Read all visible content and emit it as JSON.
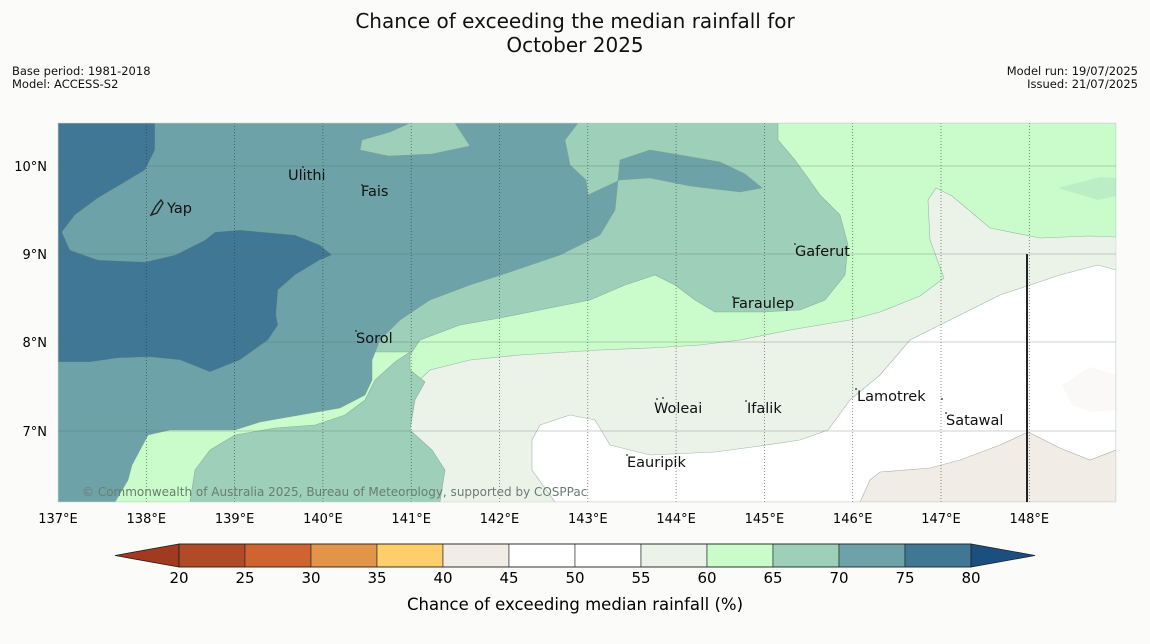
{
  "title_line1": "Chance of exceeding the median rainfall for",
  "title_line2": "October 2025",
  "meta_left": {
    "base_period": "Base period: 1981-2018",
    "model": "Model: ACCESS-S2"
  },
  "meta_right": {
    "model_run": "Model run: 19/07/2025",
    "issued": "Issued: 21/07/2025"
  },
  "lon_labels": [
    "137°E",
    "138°E",
    "139°E",
    "140°E",
    "141°E",
    "142°E",
    "143°E",
    "144°E",
    "145°E",
    "146°E",
    "147°E",
    "148°E"
  ],
  "lat_labels": [
    "10°N",
    "9°N",
    "8°N",
    "7°N"
  ],
  "places": {
    "yap": "Yap",
    "ulithi": "Ulithi",
    "fais": "Fais",
    "gaferut": "Gaferut",
    "faraulep": "Faraulep",
    "sorol": "Sorol",
    "woleai": "Woleai",
    "ifalik": "Ifalik",
    "lamotrek": "Lamotrek",
    "satawal": "Satawal",
    "eauripik": "Eauripik"
  },
  "copyright": "© Commonwealth of Australia 2025, Bureau of Meteorology, supported by COSPPac",
  "colorbar": {
    "label": "Chance of exceeding median rainfall (%)",
    "ticks": [
      "20",
      "25",
      "30",
      "35",
      "40",
      "45",
      "50",
      "55",
      "60",
      "65",
      "70",
      "75",
      "80"
    ],
    "low_color": "#a23a1f",
    "high_color": "#1b4f80",
    "colors": [
      "#b04a27",
      "#cf6431",
      "#e29449",
      "#fdce6a",
      "#f2ece6",
      "#ffffff",
      "#ffffff",
      "#ebf3e9",
      "#c9fcca",
      "#9dcfb9",
      "#6da3a8",
      "#407794"
    ]
  },
  "zone_colors": {
    "deep_blue": "#407794",
    "teal": "#6da3a8",
    "sea_green": "#9dcfb9",
    "light_green": "#c9fcca",
    "pale_green": "#ebf3e9",
    "white": "#ffffff",
    "beige": "#f2ece6"
  }
}
